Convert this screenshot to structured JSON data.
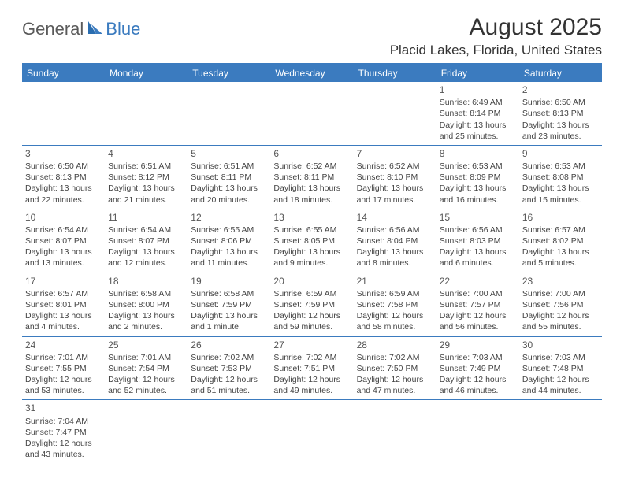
{
  "logo": {
    "part1": "General",
    "part2": "Blue"
  },
  "title": "August 2025",
  "location": "Placid Lakes, Florida, United States",
  "colors": {
    "header_bg": "#3b7bbf",
    "header_text": "#ffffff",
    "border": "#3b7bbf",
    "text": "#444444",
    "title_text": "#333333",
    "logo_gray": "#5a5a5a",
    "logo_blue": "#3b7bbf"
  },
  "weekdays": [
    "Sunday",
    "Monday",
    "Tuesday",
    "Wednesday",
    "Thursday",
    "Friday",
    "Saturday"
  ],
  "weeks": [
    [
      null,
      null,
      null,
      null,
      null,
      {
        "d": "1",
        "sr": "Sunrise: 6:49 AM",
        "ss": "Sunset: 8:14 PM",
        "dl1": "Daylight: 13 hours",
        "dl2": "and 25 minutes."
      },
      {
        "d": "2",
        "sr": "Sunrise: 6:50 AM",
        "ss": "Sunset: 8:13 PM",
        "dl1": "Daylight: 13 hours",
        "dl2": "and 23 minutes."
      }
    ],
    [
      {
        "d": "3",
        "sr": "Sunrise: 6:50 AM",
        "ss": "Sunset: 8:13 PM",
        "dl1": "Daylight: 13 hours",
        "dl2": "and 22 minutes."
      },
      {
        "d": "4",
        "sr": "Sunrise: 6:51 AM",
        "ss": "Sunset: 8:12 PM",
        "dl1": "Daylight: 13 hours",
        "dl2": "and 21 minutes."
      },
      {
        "d": "5",
        "sr": "Sunrise: 6:51 AM",
        "ss": "Sunset: 8:11 PM",
        "dl1": "Daylight: 13 hours",
        "dl2": "and 20 minutes."
      },
      {
        "d": "6",
        "sr": "Sunrise: 6:52 AM",
        "ss": "Sunset: 8:11 PM",
        "dl1": "Daylight: 13 hours",
        "dl2": "and 18 minutes."
      },
      {
        "d": "7",
        "sr": "Sunrise: 6:52 AM",
        "ss": "Sunset: 8:10 PM",
        "dl1": "Daylight: 13 hours",
        "dl2": "and 17 minutes."
      },
      {
        "d": "8",
        "sr": "Sunrise: 6:53 AM",
        "ss": "Sunset: 8:09 PM",
        "dl1": "Daylight: 13 hours",
        "dl2": "and 16 minutes."
      },
      {
        "d": "9",
        "sr": "Sunrise: 6:53 AM",
        "ss": "Sunset: 8:08 PM",
        "dl1": "Daylight: 13 hours",
        "dl2": "and 15 minutes."
      }
    ],
    [
      {
        "d": "10",
        "sr": "Sunrise: 6:54 AM",
        "ss": "Sunset: 8:07 PM",
        "dl1": "Daylight: 13 hours",
        "dl2": "and 13 minutes."
      },
      {
        "d": "11",
        "sr": "Sunrise: 6:54 AM",
        "ss": "Sunset: 8:07 PM",
        "dl1": "Daylight: 13 hours",
        "dl2": "and 12 minutes."
      },
      {
        "d": "12",
        "sr": "Sunrise: 6:55 AM",
        "ss": "Sunset: 8:06 PM",
        "dl1": "Daylight: 13 hours",
        "dl2": "and 11 minutes."
      },
      {
        "d": "13",
        "sr": "Sunrise: 6:55 AM",
        "ss": "Sunset: 8:05 PM",
        "dl1": "Daylight: 13 hours",
        "dl2": "and 9 minutes."
      },
      {
        "d": "14",
        "sr": "Sunrise: 6:56 AM",
        "ss": "Sunset: 8:04 PM",
        "dl1": "Daylight: 13 hours",
        "dl2": "and 8 minutes."
      },
      {
        "d": "15",
        "sr": "Sunrise: 6:56 AM",
        "ss": "Sunset: 8:03 PM",
        "dl1": "Daylight: 13 hours",
        "dl2": "and 6 minutes."
      },
      {
        "d": "16",
        "sr": "Sunrise: 6:57 AM",
        "ss": "Sunset: 8:02 PM",
        "dl1": "Daylight: 13 hours",
        "dl2": "and 5 minutes."
      }
    ],
    [
      {
        "d": "17",
        "sr": "Sunrise: 6:57 AM",
        "ss": "Sunset: 8:01 PM",
        "dl1": "Daylight: 13 hours",
        "dl2": "and 4 minutes."
      },
      {
        "d": "18",
        "sr": "Sunrise: 6:58 AM",
        "ss": "Sunset: 8:00 PM",
        "dl1": "Daylight: 13 hours",
        "dl2": "and 2 minutes."
      },
      {
        "d": "19",
        "sr": "Sunrise: 6:58 AM",
        "ss": "Sunset: 7:59 PM",
        "dl1": "Daylight: 13 hours",
        "dl2": "and 1 minute."
      },
      {
        "d": "20",
        "sr": "Sunrise: 6:59 AM",
        "ss": "Sunset: 7:59 PM",
        "dl1": "Daylight: 12 hours",
        "dl2": "and 59 minutes."
      },
      {
        "d": "21",
        "sr": "Sunrise: 6:59 AM",
        "ss": "Sunset: 7:58 PM",
        "dl1": "Daylight: 12 hours",
        "dl2": "and 58 minutes."
      },
      {
        "d": "22",
        "sr": "Sunrise: 7:00 AM",
        "ss": "Sunset: 7:57 PM",
        "dl1": "Daylight: 12 hours",
        "dl2": "and 56 minutes."
      },
      {
        "d": "23",
        "sr": "Sunrise: 7:00 AM",
        "ss": "Sunset: 7:56 PM",
        "dl1": "Daylight: 12 hours",
        "dl2": "and 55 minutes."
      }
    ],
    [
      {
        "d": "24",
        "sr": "Sunrise: 7:01 AM",
        "ss": "Sunset: 7:55 PM",
        "dl1": "Daylight: 12 hours",
        "dl2": "and 53 minutes."
      },
      {
        "d": "25",
        "sr": "Sunrise: 7:01 AM",
        "ss": "Sunset: 7:54 PM",
        "dl1": "Daylight: 12 hours",
        "dl2": "and 52 minutes."
      },
      {
        "d": "26",
        "sr": "Sunrise: 7:02 AM",
        "ss": "Sunset: 7:53 PM",
        "dl1": "Daylight: 12 hours",
        "dl2": "and 51 minutes."
      },
      {
        "d": "27",
        "sr": "Sunrise: 7:02 AM",
        "ss": "Sunset: 7:51 PM",
        "dl1": "Daylight: 12 hours",
        "dl2": "and 49 minutes."
      },
      {
        "d": "28",
        "sr": "Sunrise: 7:02 AM",
        "ss": "Sunset: 7:50 PM",
        "dl1": "Daylight: 12 hours",
        "dl2": "and 47 minutes."
      },
      {
        "d": "29",
        "sr": "Sunrise: 7:03 AM",
        "ss": "Sunset: 7:49 PM",
        "dl1": "Daylight: 12 hours",
        "dl2": "and 46 minutes."
      },
      {
        "d": "30",
        "sr": "Sunrise: 7:03 AM",
        "ss": "Sunset: 7:48 PM",
        "dl1": "Daylight: 12 hours",
        "dl2": "and 44 minutes."
      }
    ],
    [
      {
        "d": "31",
        "sr": "Sunrise: 7:04 AM",
        "ss": "Sunset: 7:47 PM",
        "dl1": "Daylight: 12 hours",
        "dl2": "and 43 minutes."
      },
      null,
      null,
      null,
      null,
      null,
      null
    ]
  ]
}
